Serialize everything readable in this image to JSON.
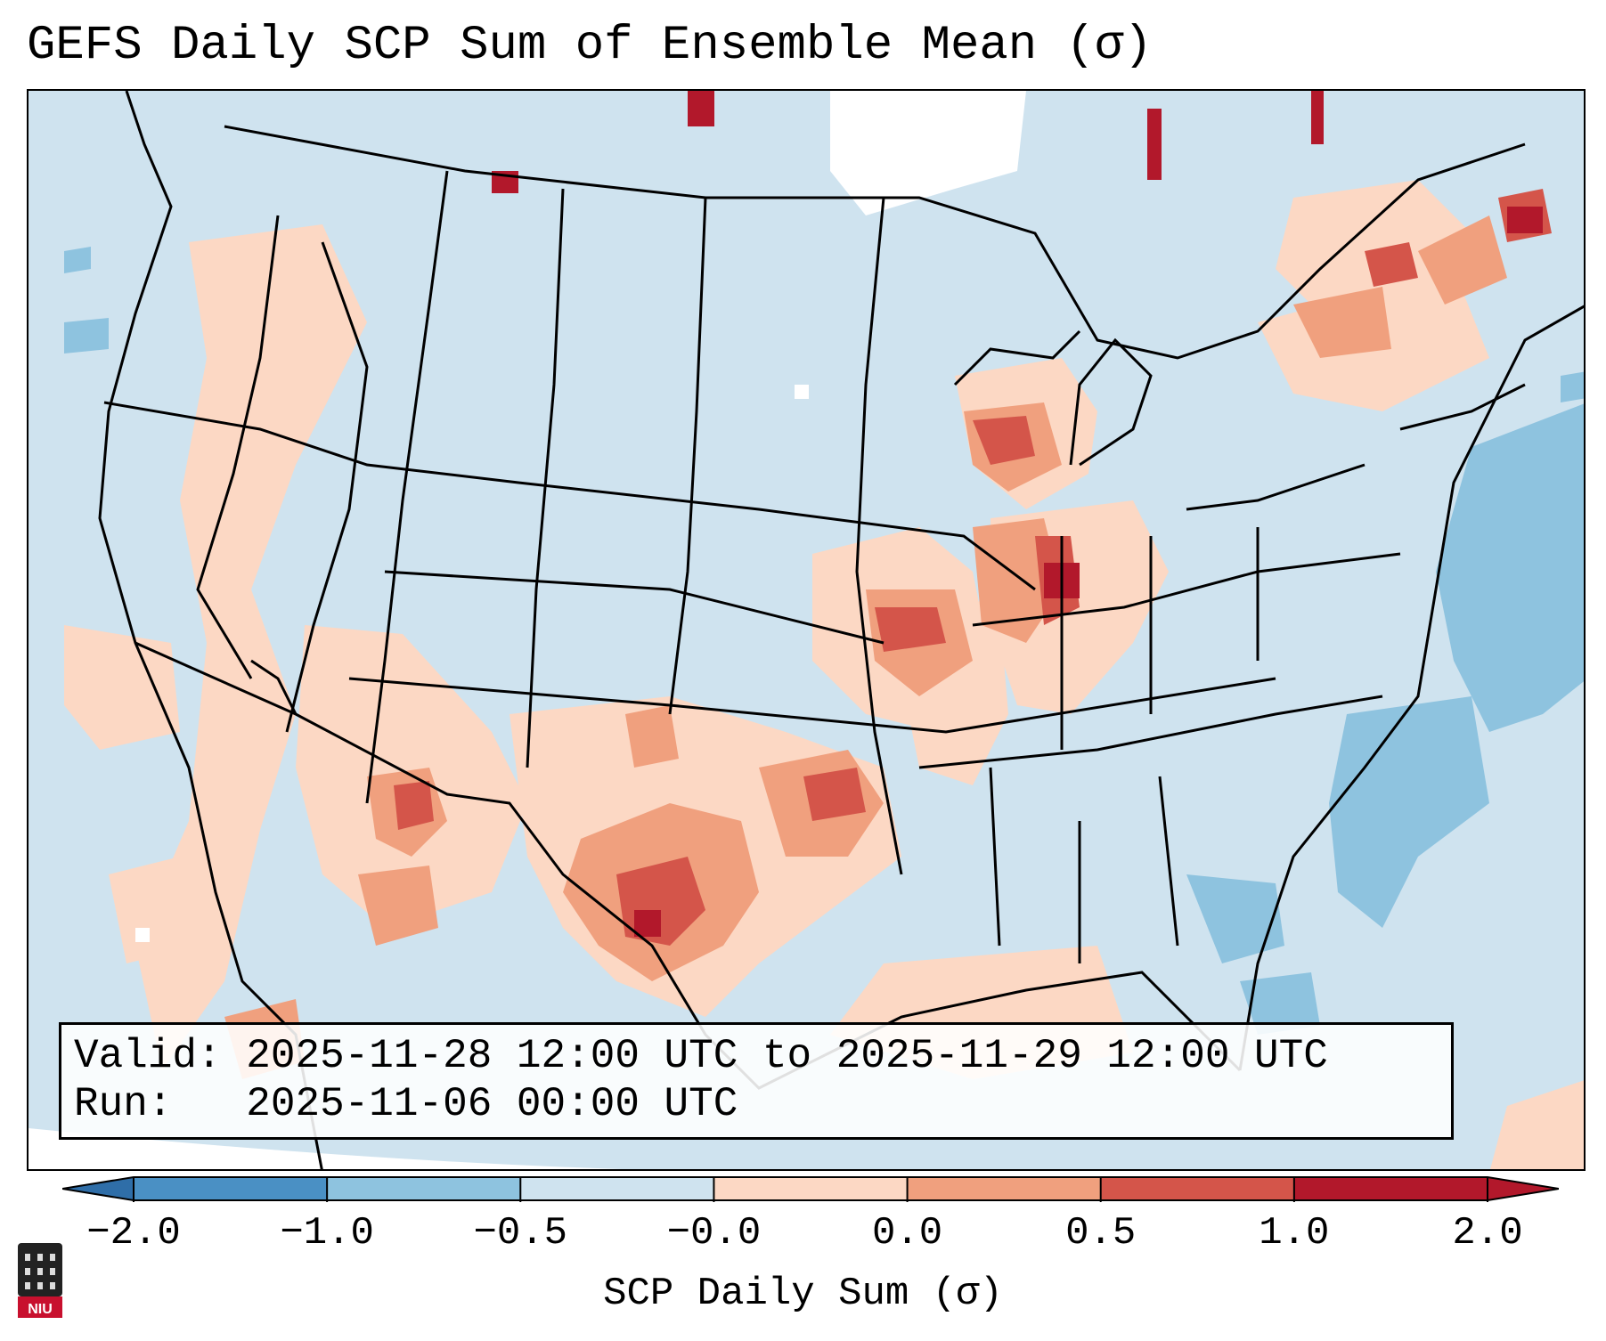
{
  "title": "GEFS Daily SCP Sum of Ensemble Mean (σ)",
  "info": {
    "valid_label": "Valid:",
    "valid_value": "2025-11-28 12:00 UTC to 2025-11-29 12:00 UTC",
    "run_label": "Run:",
    "run_value": "2025-11-06 00:00 UTC"
  },
  "colorbar": {
    "label": "SCP Daily Sum (σ)",
    "ticks": [
      "−2.0",
      "−1.0",
      "−0.5",
      "−0.0",
      "0.0",
      "0.5",
      "1.0",
      "2.0"
    ],
    "colors": [
      "#4a90c4",
      "#8ec3df",
      "#cfe3ef",
      "#f5f5f5",
      "#fcd8c4",
      "#f0a07e",
      "#d4554a",
      "#b2182b"
    ],
    "extend_low_color": "#2f6ea8",
    "extend_high_color": "#b2182b"
  },
  "map": {
    "region": "Contiguous United States",
    "background_color": "#cfe3ef"
  },
  "logo": {
    "text": "NIU"
  }
}
